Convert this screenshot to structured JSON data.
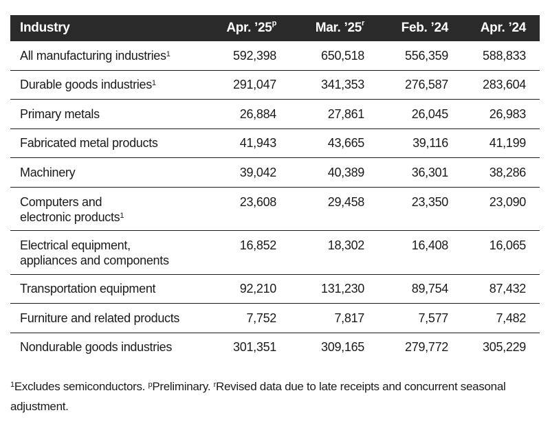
{
  "table": {
    "headers": [
      {
        "label": "Industry",
        "sup": ""
      },
      {
        "label": "Apr. ’25",
        "sup": "p"
      },
      {
        "label": "Mar. ’25",
        "sup": "r"
      },
      {
        "label": "Feb. ’24",
        "sup": ""
      },
      {
        "label": "Apr. ’24",
        "sup": ""
      }
    ],
    "rows": [
      {
        "industry": "All manufacturing industries",
        "sup": "1",
        "values": [
          "592,398",
          "650,518",
          "556,359",
          "588,833"
        ]
      },
      {
        "industry": "Durable goods industries",
        "sup": "1",
        "values": [
          "291,047",
          "341,353",
          "276,587",
          "283,604"
        ]
      },
      {
        "industry": "Primary metals",
        "sup": "",
        "values": [
          "26,884",
          "27,861",
          "26,045",
          "26,983"
        ]
      },
      {
        "industry": "Fabricated metal products",
        "sup": "",
        "values": [
          "41,943",
          "43,665",
          "39,116",
          "41,199"
        ]
      },
      {
        "industry": "Machinery",
        "sup": "",
        "values": [
          "39,042",
          "40,389",
          "36,301",
          "38,286"
        ]
      },
      {
        "industry": "Computers and\nelectronic products",
        "sup": "1",
        "values": [
          "23,608",
          "29,458",
          "23,350",
          "23,090"
        ]
      },
      {
        "industry": "Electrical equipment,\nappliances and components",
        "sup": "",
        "values": [
          "16,852",
          "18,302",
          "16,408",
          "16,065"
        ]
      },
      {
        "industry": "Transportation equipment",
        "sup": "",
        "values": [
          "92,210",
          "131,230",
          "89,754",
          "87,432"
        ]
      },
      {
        "industry": "Furniture and related products",
        "sup": "",
        "values": [
          "7,752",
          "7,817",
          "7,577",
          "7,482"
        ]
      },
      {
        "industry": "Nondurable goods industries",
        "sup": "",
        "values": [
          "301,351",
          "309,165",
          "279,772",
          "305,229"
        ]
      }
    ]
  },
  "footnotes": [
    {
      "sup": "1",
      "text": "Excludes semiconductors. "
    },
    {
      "sup": "p",
      "text": "Preliminary. "
    },
    {
      "sup": "r",
      "text": "Revised data due to late receipts and concurrent seasonal adjustment."
    }
  ],
  "colors": {
    "header_bg": "#2a2a2a",
    "header_text": "#ffffff"
  }
}
